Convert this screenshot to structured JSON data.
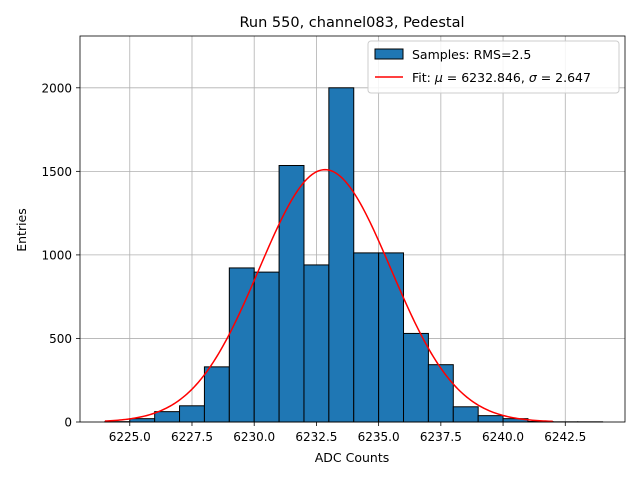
{
  "chart_data": {
    "type": "bar",
    "title": "Run 550, channel083, Pedestal",
    "xlabel": "ADC Counts",
    "ylabel": "Entries",
    "xlim": [
      6223.0,
      6244.9
    ],
    "ylim": [
      0,
      2310
    ],
    "grid": true,
    "legend_position": "top-right",
    "x_ticks": [
      {
        "value": 6225.0,
        "label": "6225.0"
      },
      {
        "value": 6227.5,
        "label": "6227.5"
      },
      {
        "value": 6230.0,
        "label": "6230.0"
      },
      {
        "value": 6232.5,
        "label": "6232.5"
      },
      {
        "value": 6235.0,
        "label": "6235.0"
      },
      {
        "value": 6237.5,
        "label": "6237.5"
      },
      {
        "value": 6240.0,
        "label": "6240.0"
      },
      {
        "value": 6242.5,
        "label": "6242.5"
      }
    ],
    "y_ticks": [
      {
        "value": 0,
        "label": "0"
      },
      {
        "value": 500,
        "label": "500"
      },
      {
        "value": 1000,
        "label": "1000"
      },
      {
        "value": 1500,
        "label": "1500"
      },
      {
        "value": 2000,
        "label": "2000"
      }
    ],
    "histogram": {
      "name": "Samples: RMS=2.5",
      "color": "#1f77b4",
      "edge_color": "#000000",
      "bin_edges": [
        6224.0,
        6225.0,
        6226.0,
        6227.0,
        6228.0,
        6229.0,
        6230.0,
        6231.0,
        6232.0,
        6233.0,
        6234.0,
        6235.0,
        6236.0,
        6237.0,
        6238.0,
        6239.0,
        6240.0,
        6241.0,
        6242.0,
        6243.0,
        6244.0
      ],
      "counts": [
        2,
        20,
        62,
        97,
        330,
        922,
        897,
        1535,
        940,
        2000,
        1012,
        1012,
        530,
        343,
        91,
        38,
        20,
        3,
        1,
        1
      ]
    },
    "fit": {
      "name": "Fit: μ = 6232.846, σ = 2.647",
      "label_prefix": "Fit: ",
      "mu_symbol": "μ",
      "mu_text": " = 6232.846, ",
      "sigma_symbol": "σ",
      "sigma_text": " = 2.647",
      "color": "#ff0000",
      "mu": 6232.846,
      "sigma": 2.647,
      "amplitude": 1510,
      "x_range": [
        6224.0,
        6242.0
      ]
    }
  }
}
